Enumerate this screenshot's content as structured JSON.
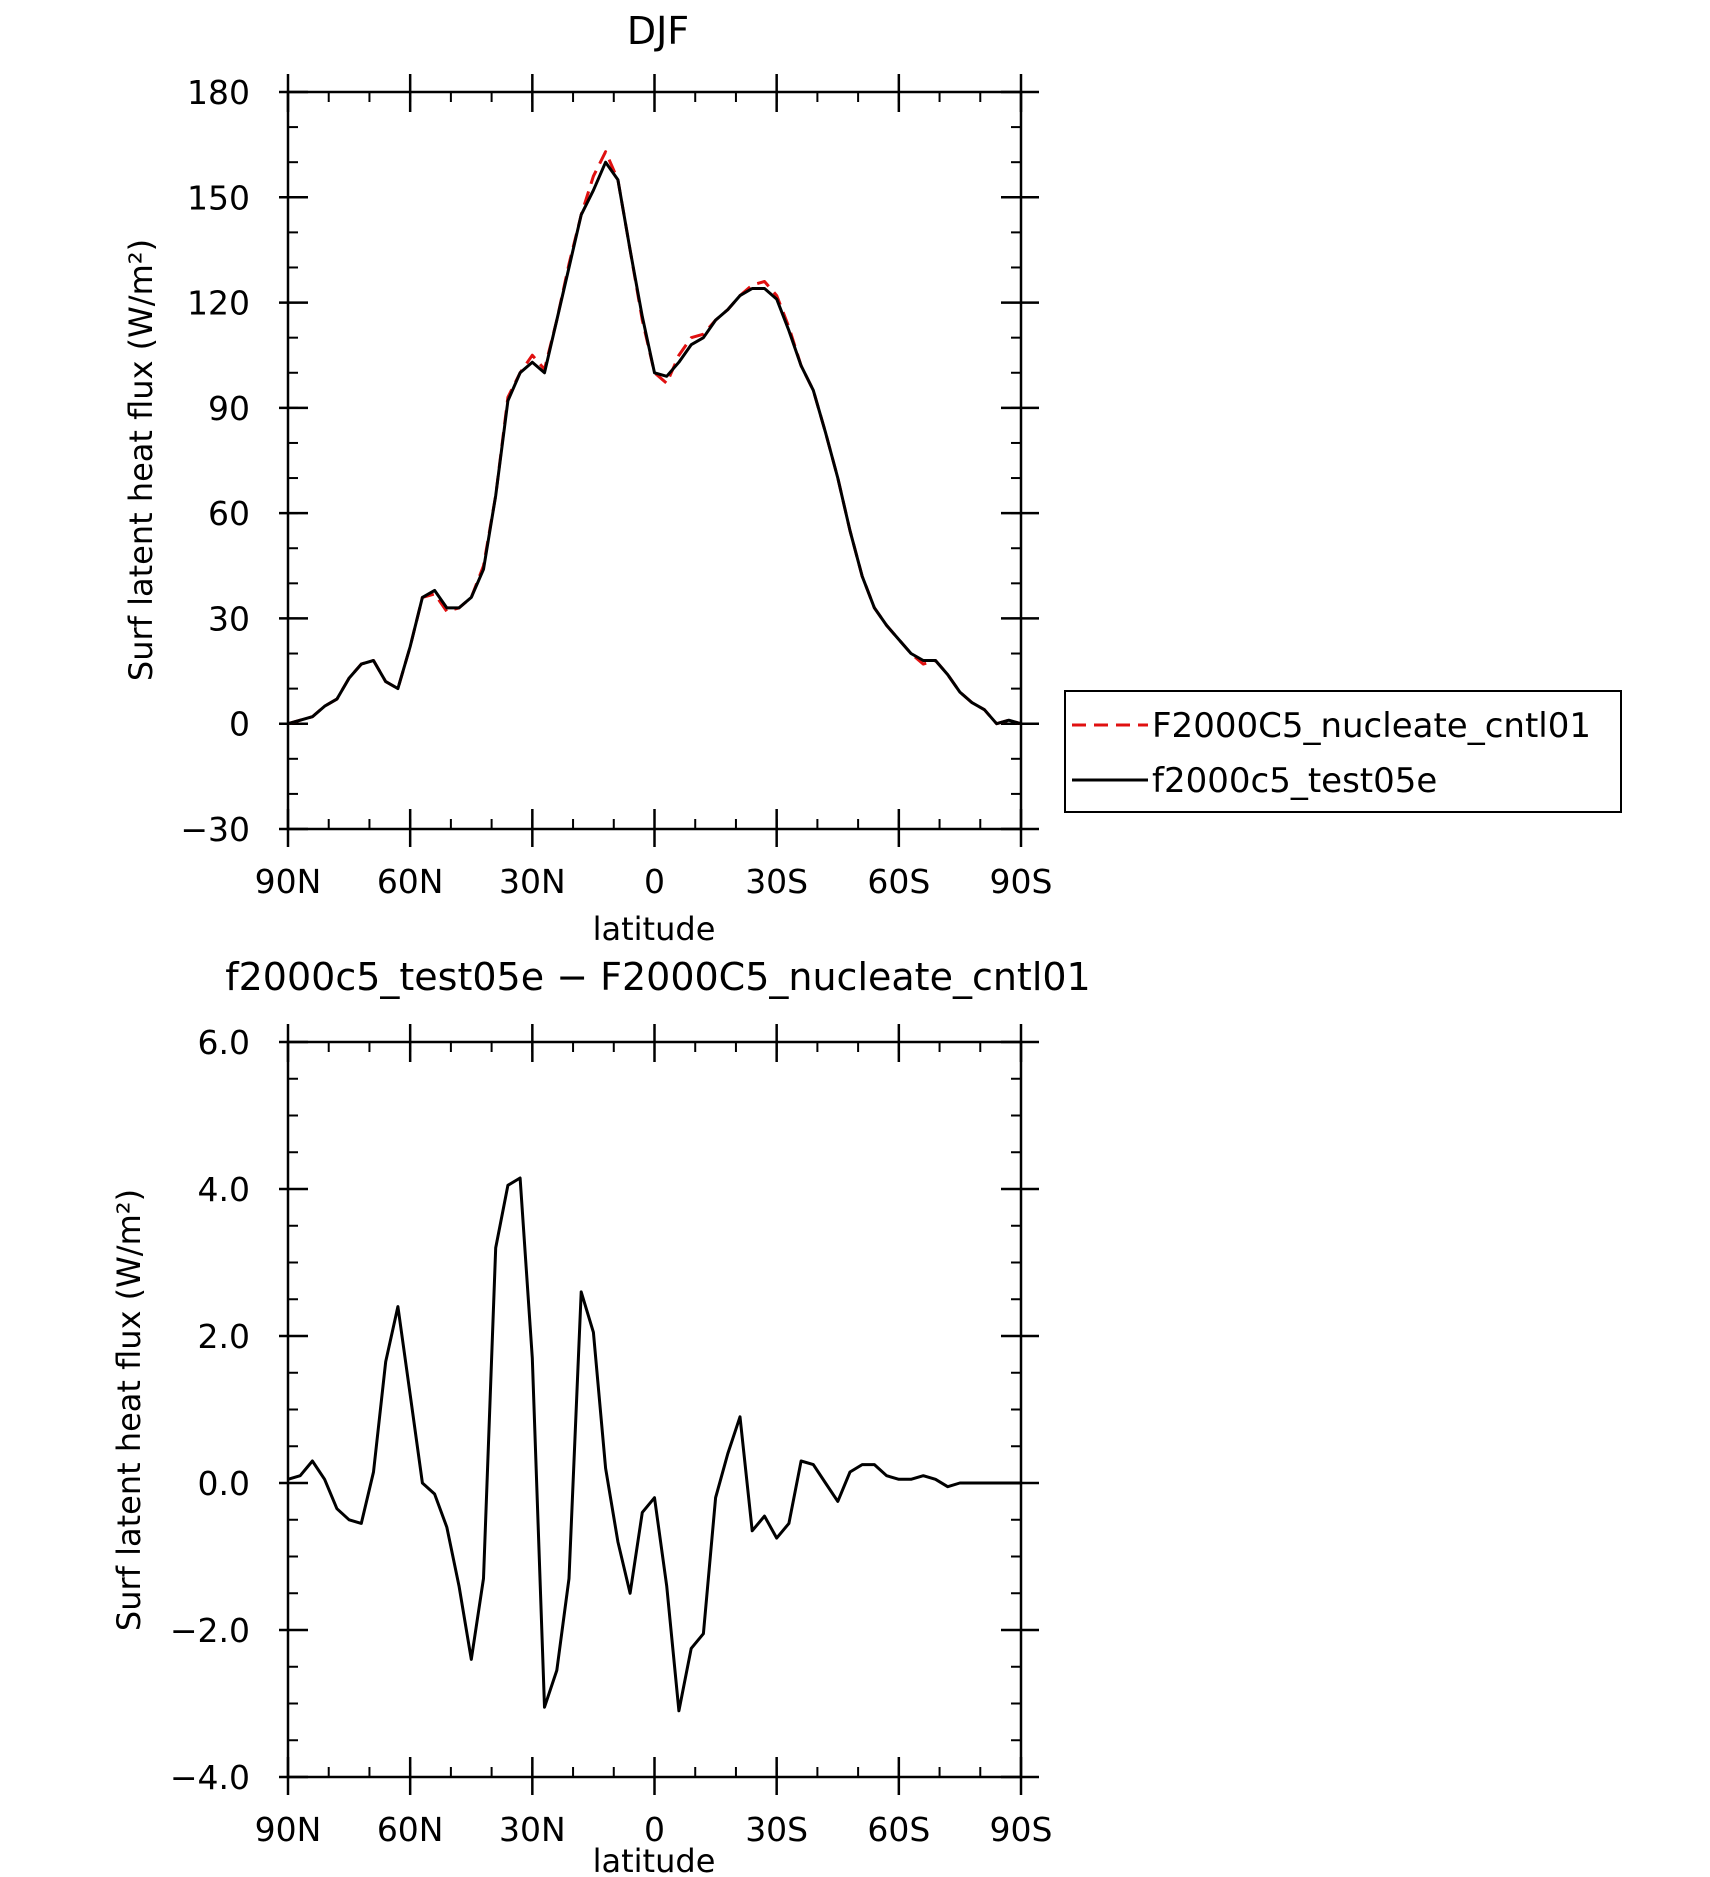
{
  "colors": {
    "cntl": "#e01010",
    "test": "#000000"
  },
  "chart_data": [
    {
      "type": "line",
      "title": "DJF",
      "xlabel": "latitude",
      "ylabel": "Surf latent heat flux (W/m²)",
      "xlim": [
        -90,
        90
      ],
      "ylim": [
        -30,
        180
      ],
      "x_ticks": [
        -90,
        -60,
        -30,
        0,
        30,
        60,
        90
      ],
      "x_tick_labels": [
        "90N",
        "60N",
        "30N",
        "0",
        "30S",
        "60S",
        "90S"
      ],
      "y_ticks": [
        -30,
        0,
        30,
        60,
        90,
        120,
        150,
        180
      ],
      "y_tick_labels": [
        "−30",
        "0",
        "30",
        "60",
        "90",
        "120",
        "150",
        "180"
      ],
      "grid": false,
      "legend": "right",
      "series": [
        {
          "name": "F2000C5_nucleate_cntl01",
          "color": "#e01010",
          "style": "dashed",
          "x": [
            -90,
            -87,
            -84,
            -81,
            -78,
            -75,
            -72,
            -69,
            -66,
            -63,
            -60,
            -57,
            -54,
            -51,
            -48,
            -45,
            -42,
            -39,
            -36,
            -33,
            -30,
            -27,
            -24,
            -21,
            -18,
            -15,
            -12,
            -9,
            -6,
            -3,
            0,
            3,
            6,
            9,
            12,
            15,
            18,
            21,
            24,
            27,
            30,
            33,
            36,
            39,
            42,
            45,
            48,
            51,
            54,
            57,
            60,
            63,
            66,
            69,
            72,
            75,
            78,
            81,
            84,
            87,
            90
          ],
          "values": [
            0,
            1,
            2,
            5,
            7,
            13,
            17,
            18,
            12,
            10,
            22,
            36,
            37,
            32,
            33,
            36,
            45,
            65,
            93,
            100,
            105,
            101,
            115,
            131,
            145,
            156,
            163,
            155,
            135,
            115,
            100,
            97,
            105,
            110,
            111,
            115,
            118,
            122,
            125,
            126,
            122,
            113,
            102,
            95,
            83,
            70,
            55,
            42,
            33,
            28,
            24,
            20,
            17,
            18,
            14,
            9,
            6,
            4,
            0,
            1,
            0
          ]
        },
        {
          "name": "f2000c5_test05e",
          "color": "#000000",
          "style": "solid",
          "x": [
            -90,
            -87,
            -84,
            -81,
            -78,
            -75,
            -72,
            -69,
            -66,
            -63,
            -60,
            -57,
            -54,
            -51,
            -48,
            -45,
            -42,
            -39,
            -36,
            -33,
            -30,
            -27,
            -24,
            -21,
            -18,
            -15,
            -12,
            -9,
            -6,
            -3,
            0,
            3,
            6,
            9,
            12,
            15,
            18,
            21,
            24,
            27,
            30,
            33,
            36,
            39,
            42,
            45,
            48,
            51,
            54,
            57,
            60,
            63,
            66,
            69,
            72,
            75,
            78,
            81,
            84,
            87,
            90
          ],
          "values": [
            0,
            1,
            2,
            5,
            7,
            13,
            17,
            18,
            12,
            10,
            22,
            36,
            38,
            33,
            33,
            36,
            44,
            65,
            92,
            100,
            103,
            100,
            115,
            130,
            145,
            152,
            160,
            155,
            135,
            116,
            100,
            99,
            103,
            108,
            110,
            115,
            118,
            122,
            124,
            124,
            121,
            112,
            102,
            95,
            83,
            70,
            55,
            42,
            33,
            28,
            24,
            20,
            18,
            18,
            14,
            9,
            6,
            4,
            0,
            1,
            0
          ]
        }
      ]
    },
    {
      "type": "line",
      "title": "f2000c5_test05e − F2000C5_nucleate_cntl01",
      "xlabel": "latitude",
      "ylabel": "Surf latent heat flux (W/m²)",
      "xlim": [
        -90,
        90
      ],
      "ylim": [
        -4.0,
        6.0
      ],
      "x_ticks": [
        -90,
        -60,
        -30,
        0,
        30,
        60,
        90
      ],
      "x_tick_labels": [
        "90N",
        "60N",
        "30N",
        "0",
        "30S",
        "60S",
        "90S"
      ],
      "y_ticks": [
        -4,
        -2,
        0,
        2,
        4,
        6
      ],
      "y_tick_labels": [
        "−4.0",
        "−2.0",
        "0.0",
        "2.0",
        "4.0",
        "6.0"
      ],
      "grid": false,
      "series": [
        {
          "color": "#000000",
          "style": "solid",
          "x": [
            -90,
            -87,
            -84,
            -81,
            -78,
            -75,
            -72,
            -69,
            -66,
            -63,
            -60,
            -57,
            -54,
            -51,
            -48,
            -45,
            -42,
            -39,
            -36,
            -33,
            -30,
            -27,
            -24,
            -21,
            -18,
            -15,
            -12,
            -9,
            -6,
            -3,
            0,
            3,
            6,
            9,
            12,
            15,
            18,
            21,
            24,
            27,
            30,
            33,
            36,
            39,
            42,
            45,
            48,
            51,
            54,
            57,
            60,
            63,
            66,
            69,
            72,
            75,
            78,
            81,
            84,
            87,
            90
          ],
          "values": [
            0.05,
            0.1,
            0.3,
            0.05,
            -0.35,
            -0.5,
            -0.55,
            0.15,
            1.65,
            2.4,
            1.2,
            0.0,
            -0.15,
            -0.6,
            -1.4,
            -2.4,
            -1.3,
            3.2,
            4.05,
            4.15,
            1.7,
            -3.05,
            -2.55,
            -1.3,
            2.6,
            2.05,
            0.2,
            -0.8,
            -1.5,
            -0.4,
            -0.2,
            -1.4,
            -3.1,
            -2.25,
            -2.05,
            -0.2,
            0.4,
            0.9,
            -0.65,
            -0.45,
            -0.75,
            -0.55,
            0.3,
            0.25,
            0.0,
            -0.25,
            0.15,
            0.25,
            0.25,
            0.1,
            0.05,
            0.05,
            0.1,
            0.05,
            -0.05,
            0.0,
            0.0,
            0.0,
            0.0,
            0.0,
            0.0
          ]
        }
      ]
    }
  ]
}
